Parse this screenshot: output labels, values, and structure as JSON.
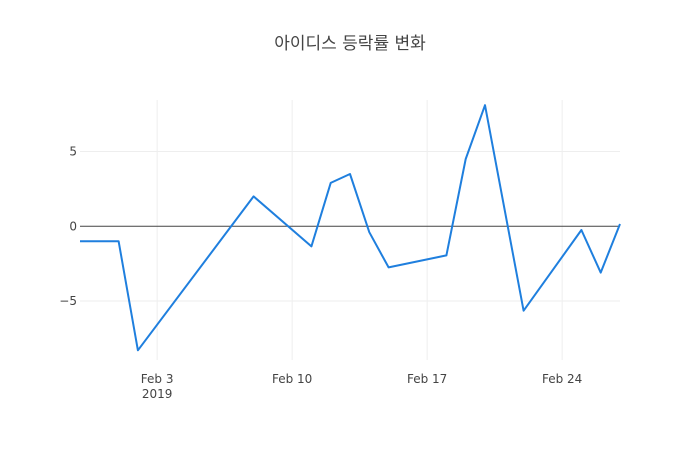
{
  "chart_data": {
    "type": "line",
    "title": "아이디스 등락률 변화",
    "xlabel": "",
    "ylabel": "",
    "x_start": "2019-01-30",
    "x_end": "2019-02-27",
    "ylim": [
      -8.95,
      8.45
    ],
    "grid": true,
    "x_ticks": [
      {
        "date": "2019-02-03",
        "label": "Feb 3",
        "sub": "2019"
      },
      {
        "date": "2019-02-10",
        "label": "Feb 10",
        "sub": ""
      },
      {
        "date": "2019-02-17",
        "label": "Feb 17",
        "sub": ""
      },
      {
        "date": "2019-02-24",
        "label": "Feb 24",
        "sub": ""
      }
    ],
    "y_ticks": [
      {
        "value": 5,
        "label": "5"
      },
      {
        "value": 0,
        "label": "0"
      },
      {
        "value": -5,
        "label": "−5"
      }
    ],
    "series": [
      {
        "color": "#1f7fde",
        "points": [
          {
            "x": "2019-01-30",
            "y": -1.0
          },
          {
            "x": "2019-01-31",
            "y": -1.0
          },
          {
            "x": "2019-02-01",
            "y": -1.0
          },
          {
            "x": "2019-02-02",
            "y": -8.3
          },
          {
            "x": "2019-02-08",
            "y": 2.0
          },
          {
            "x": "2019-02-11",
            "y": -1.35
          },
          {
            "x": "2019-02-12",
            "y": 2.9
          },
          {
            "x": "2019-02-13",
            "y": 3.5
          },
          {
            "x": "2019-02-14",
            "y": -0.4
          },
          {
            "x": "2019-02-15",
            "y": -2.75
          },
          {
            "x": "2019-02-18",
            "y": -1.95
          },
          {
            "x": "2019-02-19",
            "y": 4.5
          },
          {
            "x": "2019-02-20",
            "y": 8.1
          },
          {
            "x": "2019-02-22",
            "y": -5.65
          },
          {
            "x": "2019-02-25",
            "y": -0.25
          },
          {
            "x": "2019-02-26",
            "y": -3.1
          },
          {
            "x": "2019-02-27",
            "y": 0.15
          }
        ]
      }
    ]
  }
}
